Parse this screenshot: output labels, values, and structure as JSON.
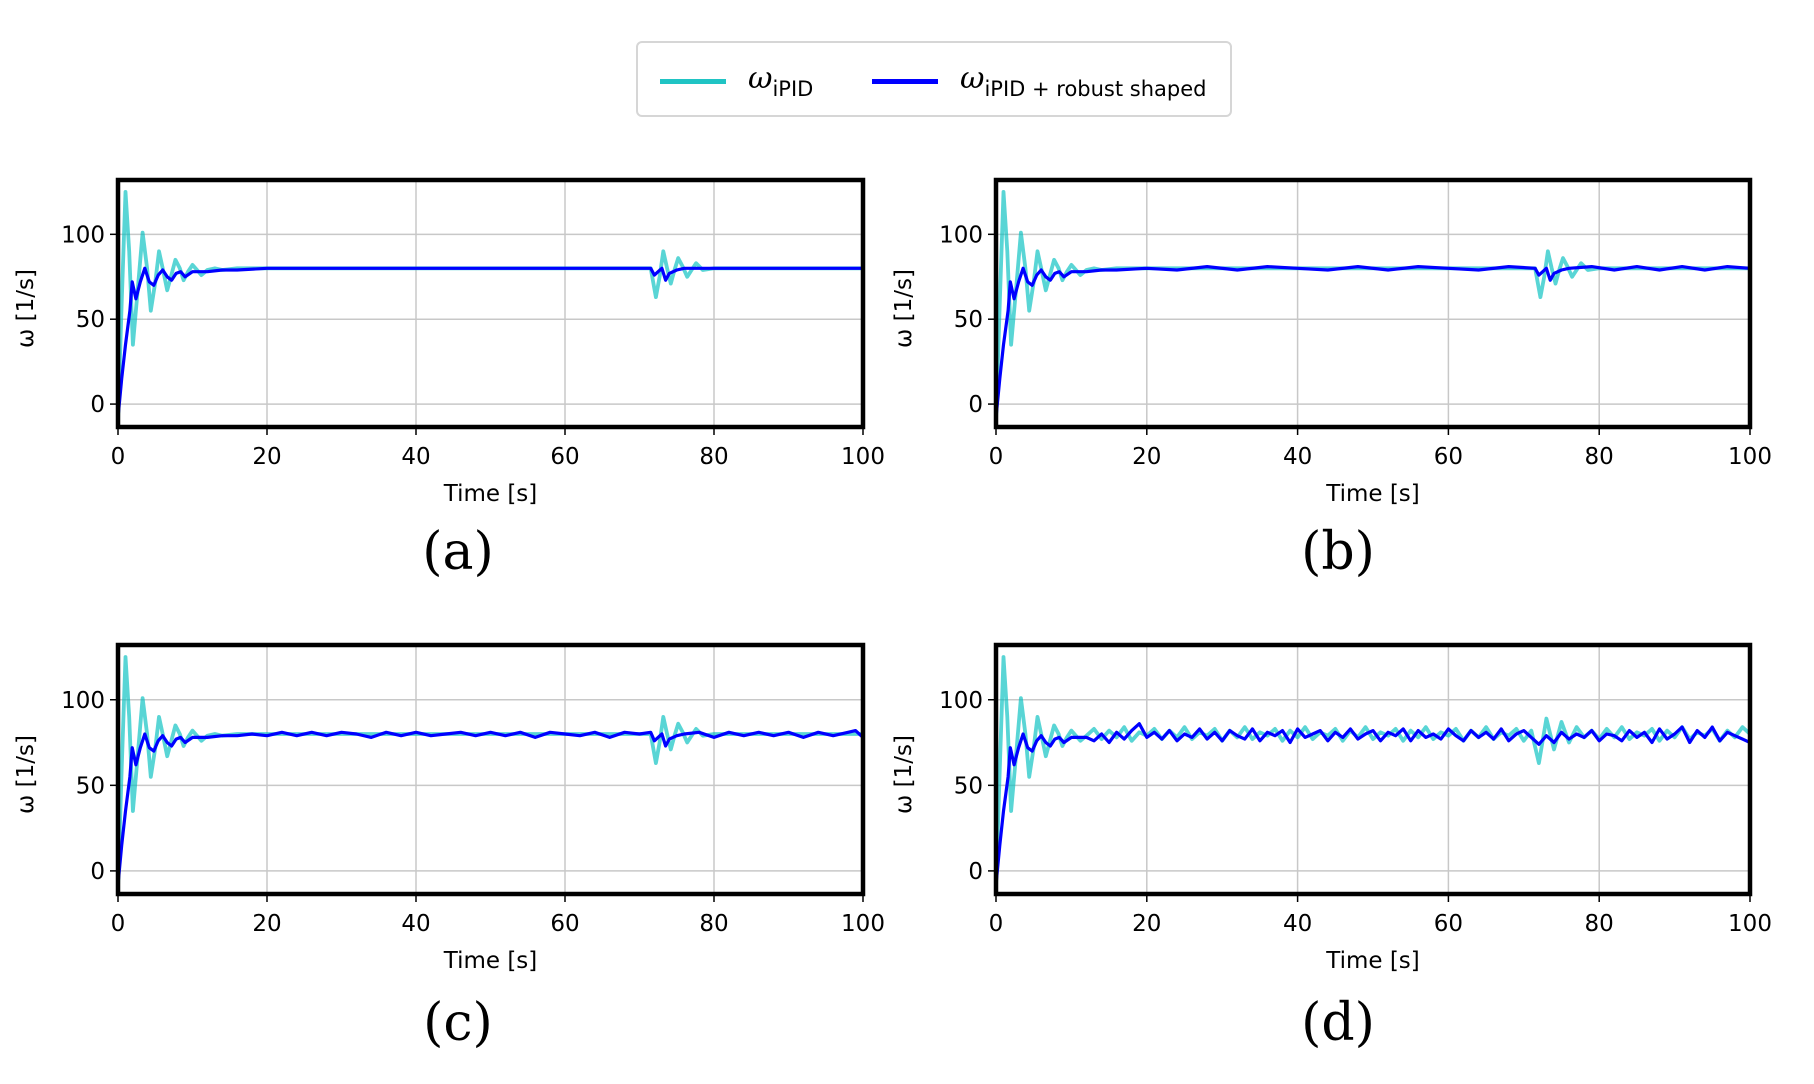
{
  "legend": {
    "entries": [
      {
        "symbol": "ω",
        "sub": "iPID",
        "color": "#00bfbf"
      },
      {
        "symbol": "ω",
        "sub": "iPID + robust shaped",
        "color": "#0000ff"
      }
    ]
  },
  "chart_data": [
    {
      "type": "line",
      "caption": "(a)",
      "xlabel": "Time [s]",
      "ylabel": "ω [1/s]",
      "xlim": [
        0,
        100
      ],
      "ylim": [
        -13.5,
        132
      ],
      "xticks": [
        0,
        20,
        40,
        60,
        80,
        100
      ],
      "yticks": [
        0,
        50,
        100
      ],
      "grid": true,
      "series": [
        {
          "color": "#00bfbf",
          "x": [
            0,
            0.5,
            1,
            1.5,
            2,
            2.7,
            3.3,
            3.9,
            4.4,
            5,
            5.5,
            6,
            6.6,
            7.1,
            7.7,
            8.3,
            8.8,
            9.4,
            10,
            10.6,
            11.2,
            12,
            13,
            14,
            16,
            20,
            30,
            40,
            50,
            60,
            70,
            71.5,
            72.2,
            72.7,
            73.2,
            73.7,
            74.2,
            74.7,
            75.2,
            75.8,
            76.4,
            77,
            77.6,
            78.5,
            80,
            90,
            100
          ],
          "y": [
            -10,
            60,
            125,
            90,
            35,
            70,
            101,
            80,
            55,
            72,
            90,
            80,
            67,
            75,
            85,
            80,
            73,
            78,
            82,
            79,
            76,
            79,
            80,
            79,
            80,
            80,
            80,
            80,
            80,
            80,
            80,
            80,
            63,
            75,
            90,
            80,
            71,
            79,
            86,
            81,
            75,
            79,
            83,
            79,
            80,
            80,
            80
          ]
        },
        {
          "color": "#0000ff",
          "x": [
            0,
            0.5,
            1,
            1.6,
            1.9,
            2.4,
            3,
            3.6,
            4.2,
            4.8,
            5.4,
            6,
            6.6,
            7.2,
            7.8,
            8.4,
            9,
            10,
            11,
            12,
            14,
            16,
            20,
            30,
            40,
            50,
            60,
            70,
            71.5,
            72,
            72.5,
            73,
            73.5,
            74,
            75,
            76,
            80,
            90,
            100
          ],
          "y": [
            -8,
            15,
            35,
            55,
            72,
            62,
            72,
            80,
            72,
            70,
            76,
            79,
            75,
            73,
            77,
            78,
            75,
            78,
            78,
            78,
            79,
            79,
            80,
            80,
            80,
            80,
            80,
            80,
            80,
            76,
            78,
            80,
            73,
            77,
            79,
            80,
            80,
            80,
            80
          ]
        }
      ]
    },
    {
      "type": "line",
      "caption": "(b)",
      "xlabel": "Time [s]",
      "ylabel": "ω [1/s]",
      "xlim": [
        0,
        100
      ],
      "ylim": [
        -13.5,
        132
      ],
      "xticks": [
        0,
        20,
        40,
        60,
        80,
        100
      ],
      "yticks": [
        0,
        50,
        100
      ],
      "grid": true,
      "series": [
        {
          "color": "#00bfbf",
          "x": [
            0,
            0.5,
            1,
            1.5,
            2,
            2.7,
            3.3,
            3.9,
            4.4,
            5,
            5.5,
            6,
            6.6,
            7.1,
            7.7,
            8.3,
            8.8,
            9.4,
            10,
            10.6,
            11.2,
            12,
            13,
            14,
            16,
            20,
            30,
            40,
            50,
            60,
            70,
            71.5,
            72.2,
            72.7,
            73.2,
            73.7,
            74.2,
            74.7,
            75.2,
            75.8,
            76.4,
            77,
            77.6,
            78.5,
            80,
            90,
            100
          ],
          "y": [
            -10,
            60,
            125,
            90,
            35,
            70,
            101,
            80,
            55,
            72,
            90,
            80,
            67,
            75,
            85,
            80,
            73,
            78,
            82,
            79,
            76,
            79,
            80,
            79,
            80,
            80,
            80,
            80,
            80,
            80,
            80,
            80,
            63,
            75,
            90,
            80,
            71,
            79,
            86,
            81,
            75,
            79,
            83,
            79,
            80,
            80,
            80
          ]
        },
        {
          "color": "#0000ff",
          "x": [
            0,
            0.5,
            1,
            1.6,
            1.9,
            2.4,
            3,
            3.6,
            4.2,
            4.8,
            5.4,
            6,
            6.6,
            7.2,
            7.8,
            8.4,
            9,
            10,
            11,
            12,
            14,
            16,
            20,
            24,
            28,
            32,
            36,
            40,
            44,
            48,
            52,
            56,
            60,
            64,
            68,
            71.5,
            72,
            72.5,
            73,
            73.5,
            74,
            75,
            76,
            79,
            82,
            85,
            88,
            91,
            94,
            97,
            100
          ],
          "y": [
            -8,
            15,
            35,
            55,
            72,
            62,
            72,
            80,
            72,
            70,
            76,
            79,
            75,
            73,
            77,
            78,
            75,
            78,
            78,
            78,
            79,
            79,
            80,
            79,
            81,
            79,
            81,
            80,
            79,
            81,
            79,
            81,
            80,
            79,
            81,
            80,
            76,
            78,
            80,
            73,
            77,
            79,
            80,
            81,
            79,
            81,
            79,
            81,
            79,
            81,
            80
          ]
        }
      ]
    },
    {
      "type": "line",
      "caption": "(c)",
      "xlabel": "Time [s]",
      "ylabel": "ω [1/s]",
      "xlim": [
        0,
        100
      ],
      "ylim": [
        -13.5,
        132
      ],
      "xticks": [
        0,
        20,
        40,
        60,
        80,
        100
      ],
      "yticks": [
        0,
        50,
        100
      ],
      "grid": true,
      "series": [
        {
          "color": "#00bfbf",
          "x": [
            0,
            0.5,
            1,
            1.5,
            2,
            2.7,
            3.3,
            3.9,
            4.4,
            5,
            5.5,
            6,
            6.6,
            7.1,
            7.7,
            8.3,
            8.8,
            9.4,
            10,
            10.6,
            11.2,
            12,
            13,
            14,
            16,
            20,
            30,
            40,
            50,
            60,
            70,
            71.5,
            72.2,
            72.7,
            73.2,
            73.7,
            74.2,
            74.7,
            75.2,
            75.8,
            76.4,
            77,
            77.6,
            78.5,
            80,
            90,
            100
          ],
          "y": [
            -10,
            60,
            125,
            90,
            35,
            70,
            101,
            80,
            55,
            72,
            90,
            80,
            67,
            75,
            85,
            80,
            73,
            78,
            82,
            79,
            76,
            79,
            80,
            79,
            80,
            80,
            80,
            80,
            80,
            80,
            80,
            80,
            63,
            75,
            90,
            80,
            71,
            79,
            86,
            81,
            75,
            79,
            83,
            79,
            80,
            80,
            80
          ]
        },
        {
          "color": "#0000ff",
          "x": [
            0,
            0.5,
            1,
            1.6,
            1.9,
            2.4,
            3,
            3.6,
            4.2,
            4.8,
            5.4,
            6,
            6.6,
            7.2,
            7.8,
            8.4,
            9,
            10,
            11,
            12,
            14,
            16,
            18,
            20,
            22,
            24,
            26,
            28,
            30,
            32,
            34,
            36,
            38,
            40,
            42,
            44,
            46,
            48,
            50,
            52,
            54,
            56,
            58,
            60,
            62,
            64,
            66,
            68,
            70,
            71.5,
            72,
            72.5,
            73,
            73.5,
            74,
            75,
            76,
            78,
            80,
            82,
            84,
            86,
            88,
            90,
            92,
            94,
            96,
            98,
            99,
            100
          ],
          "y": [
            -8,
            15,
            35,
            55,
            72,
            62,
            72,
            80,
            72,
            70,
            76,
            79,
            75,
            73,
            77,
            78,
            75,
            78,
            78,
            78,
            79,
            79,
            80,
            79,
            81,
            79,
            81,
            79,
            81,
            80,
            78,
            81,
            79,
            81,
            79,
            80,
            81,
            79,
            81,
            79,
            81,
            78,
            81,
            80,
            79,
            81,
            78,
            81,
            80,
            81,
            76,
            78,
            80,
            73,
            77,
            79,
            80,
            81,
            78,
            81,
            79,
            81,
            79,
            81,
            78,
            81,
            79,
            81,
            82,
            78
          ]
        }
      ]
    },
    {
      "type": "line",
      "caption": "(d)",
      "xlabel": "Time [s]",
      "ylabel": "ω [1/s]",
      "xlim": [
        0,
        100
      ],
      "ylim": [
        -13.5,
        132
      ],
      "xticks": [
        0,
        20,
        40,
        60,
        80,
        100
      ],
      "yticks": [
        0,
        50,
        100
      ],
      "grid": true,
      "series": [
        {
          "color": "#00bfbf",
          "x": [
            0,
            0.5,
            1,
            1.5,
            2,
            2.7,
            3.3,
            3.9,
            4.4,
            5,
            5.5,
            6,
            6.6,
            7.1,
            7.7,
            8.3,
            8.8,
            9.4,
            10,
            10.6,
            11.2,
            12,
            13,
            14,
            15,
            16,
            17,
            18,
            19,
            20,
            21,
            22,
            23,
            24,
            25,
            26,
            27,
            28,
            29,
            30,
            31,
            32,
            33,
            34,
            35,
            36,
            37,
            38,
            39,
            40,
            41,
            42,
            43,
            44,
            45,
            46,
            47,
            48,
            49,
            50,
            51,
            52,
            53,
            54,
            55,
            56,
            57,
            58,
            59,
            60,
            61,
            62,
            63,
            64,
            65,
            66,
            67,
            68,
            69,
            70,
            71,
            72,
            73,
            74,
            75,
            76,
            77,
            78,
            79,
            80,
            81,
            82,
            83,
            84,
            85,
            86,
            87,
            88,
            89,
            90,
            91,
            92,
            93,
            94,
            95,
            96,
            97,
            98,
            99,
            100
          ],
          "y": [
            -10,
            60,
            125,
            90,
            35,
            70,
            101,
            80,
            55,
            72,
            90,
            80,
            67,
            75,
            85,
            80,
            73,
            78,
            82,
            79,
            76,
            79,
            83,
            77,
            82,
            78,
            84,
            76,
            81,
            79,
            83,
            77,
            82,
            78,
            84,
            77,
            81,
            79,
            83,
            76,
            82,
            78,
            84,
            77,
            81,
            79,
            83,
            76,
            82,
            78,
            84,
            77,
            81,
            79,
            83,
            76,
            82,
            78,
            84,
            77,
            81,
            79,
            83,
            76,
            82,
            78,
            84,
            77,
            81,
            79,
            83,
            76,
            82,
            78,
            84,
            77,
            81,
            79,
            83,
            76,
            82,
            63,
            89,
            71,
            87,
            75,
            84,
            78,
            82,
            77,
            83,
            78,
            84,
            77,
            81,
            79,
            83,
            76,
            82,
            78,
            84,
            77,
            81,
            79,
            83,
            76,
            82,
            78,
            84,
            80
          ]
        },
        {
          "color": "#0000ff",
          "x": [
            0,
            0.5,
            1,
            1.6,
            1.9,
            2.4,
            3,
            3.6,
            4.2,
            4.8,
            5.4,
            6,
            6.6,
            7.2,
            7.8,
            8.4,
            9,
            10,
            11,
            12,
            13,
            14,
            15,
            16,
            17,
            18,
            19,
            20,
            21,
            22,
            23,
            24,
            25,
            26,
            27,
            28,
            29,
            30,
            31,
            32,
            33,
            34,
            35,
            36,
            37,
            38,
            39,
            40,
            41,
            42,
            43,
            44,
            45,
            46,
            47,
            48,
            49,
            50,
            51,
            52,
            53,
            54,
            55,
            56,
            57,
            58,
            59,
            60,
            61,
            62,
            63,
            64,
            65,
            66,
            67,
            68,
            69,
            70,
            71,
            72,
            73,
            74,
            75,
            76,
            77,
            78,
            79,
            80,
            81,
            82,
            83,
            84,
            85,
            86,
            87,
            88,
            89,
            90,
            91,
            92,
            93,
            94,
            95,
            96,
            97,
            98,
            99,
            100
          ],
          "y": [
            -8,
            15,
            35,
            55,
            72,
            62,
            72,
            80,
            72,
            70,
            76,
            79,
            75,
            73,
            77,
            78,
            75,
            78,
            78,
            78,
            76,
            80,
            75,
            81,
            77,
            82,
            86,
            78,
            81,
            77,
            82,
            76,
            80,
            78,
            83,
            77,
            81,
            76,
            82,
            79,
            77,
            83,
            76,
            81,
            79,
            82,
            75,
            83,
            78,
            80,
            82,
            76,
            81,
            78,
            83,
            77,
            80,
            82,
            76,
            81,
            79,
            83,
            76,
            82,
            78,
            80,
            77,
            83,
            79,
            76,
            82,
            78,
            81,
            77,
            83,
            76,
            80,
            82,
            78,
            74,
            79,
            75,
            81,
            77,
            80,
            78,
            82,
            76,
            80,
            79,
            76,
            82,
            78,
            81,
            75,
            83,
            77,
            80,
            84,
            75,
            82,
            78,
            84,
            76,
            81,
            79,
            77,
            75
          ]
        }
      ]
    }
  ]
}
